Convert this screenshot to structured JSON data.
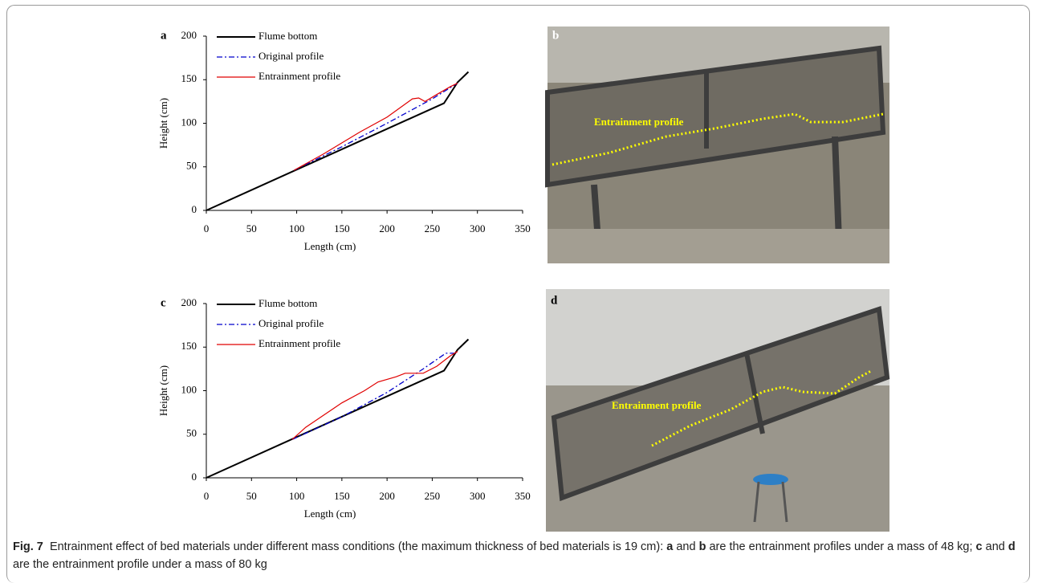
{
  "chart_data": [
    {
      "type": "line",
      "panel": "a",
      "x_label": "Length (cm)",
      "y_label": "Height (cm)",
      "xlim": [
        0,
        350
      ],
      "xticks": [
        0,
        50,
        100,
        150,
        200,
        250,
        300,
        350
      ],
      "ylim": [
        0,
        200
      ],
      "yticks": [
        0,
        50,
        100,
        150,
        200
      ],
      "legend": "upper left",
      "series": [
        {
          "name": "Flume bottom",
          "color": "#000000",
          "style": "solid",
          "width": 2,
          "x": [
            0,
            263,
            278,
            290
          ],
          "values": [
            0,
            123,
            147,
            159
          ]
        },
        {
          "name": "Original profile",
          "color": "#0000cc",
          "style": "dash-dot",
          "width": 1.3,
          "x": [
            97,
            150,
            200,
            250,
            278
          ],
          "values": [
            46,
            73,
            100,
            128,
            146
          ]
        },
        {
          "name": "Entrainment profile",
          "color": "#e00000",
          "style": "solid",
          "width": 1.2,
          "x": [
            97,
            130,
            170,
            200,
            228,
            235,
            242,
            255,
            270,
            278
          ],
          "values": [
            46,
            65,
            90,
            107,
            128,
            129,
            125,
            133,
            142,
            146
          ]
        }
      ]
    },
    {
      "type": "line",
      "panel": "c",
      "x_label": "Length (cm)",
      "y_label": "Height (cm)",
      "xlim": [
        0,
        350
      ],
      "xticks": [
        0,
        50,
        100,
        150,
        200,
        250,
        300,
        350
      ],
      "ylim": [
        0,
        200
      ],
      "yticks": [
        0,
        50,
        100,
        150,
        200
      ],
      "legend": "upper left",
      "series": [
        {
          "name": "Flume bottom",
          "color": "#000000",
          "style": "solid",
          "width": 2,
          "x": [
            0,
            263,
            278,
            290
          ],
          "values": [
            0,
            123,
            147,
            159
          ]
        },
        {
          "name": "Original profile",
          "color": "#0000cc",
          "style": "dash-dot",
          "width": 1.3,
          "x": [
            95,
            150,
            200,
            240,
            265,
            278
          ],
          "values": [
            44,
            70,
            98,
            125,
            143,
            143
          ]
        },
        {
          "name": "Entrainment profile",
          "color": "#e00000",
          "style": "solid",
          "width": 1.2,
          "x": [
            95,
            110,
            130,
            150,
            175,
            190,
            210,
            220,
            240,
            255,
            270,
            278
          ],
          "values": [
            44,
            58,
            72,
            86,
            100,
            110,
            116,
            120,
            120,
            128,
            140,
            145
          ]
        }
      ]
    }
  ],
  "photos": [
    {
      "panel": "b",
      "annotation": "Entrainment profile"
    },
    {
      "panel": "d",
      "annotation": "Entrainment profile"
    }
  ],
  "caption": {
    "label": "Fig. 7",
    "parts": [
      "Entrainment effect of bed materials under different mass conditions (the maximum thickness of bed materials is 19 cm): ",
      "a",
      " and ",
      "b",
      " are the entrainment profiles under a mass of 48 kg; ",
      "c",
      " and ",
      "d",
      " are the entrainment profile under a mass of 80 kg"
    ]
  }
}
